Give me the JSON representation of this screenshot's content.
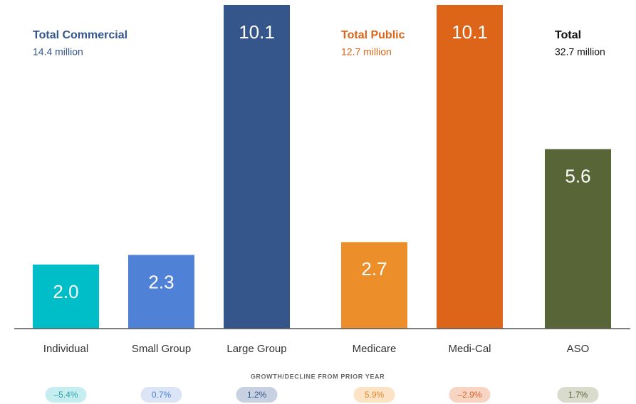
{
  "chart_data": {
    "type": "bar",
    "categories": [
      "Individual",
      "Small Group",
      "Large Group",
      "Medicare",
      "Medi-Cal",
      "ASO"
    ],
    "values": [
      2.0,
      2.3,
      10.1,
      2.7,
      10.1,
      5.6
    ],
    "value_labels": [
      "2.0",
      "2.3",
      "10.1",
      "2.7",
      "10.1",
      "5.6"
    ],
    "colors": [
      "#00bec8",
      "#4f82d6",
      "#34568b",
      "#ec8f2b",
      "#dc6519",
      "#586537"
    ],
    "annotations": [
      {
        "title": "Total Commercial",
        "text": "14.4 million",
        "color": "#34568b"
      },
      {
        "title": "Total Public",
        "text": "12.7 million",
        "color": "#dc6519"
      },
      {
        "title": "Total",
        "text": "32.7 million",
        "color": "#111111"
      }
    ],
    "growth_title": "GROWTH/DECLINE FROM PRIOR YEAR",
    "growth_labels": [
      "–5.4%",
      "0.7%",
      "1.2%",
      "5.9%",
      "–2.9%",
      "1.7%"
    ],
    "growth_colors": [
      "#c6eef0",
      "#dbe5f6",
      "#c8d1e1",
      "#fde3c5",
      "#f8d4c2",
      "#d9dccd"
    ],
    "growth_text_colors": [
      "#2aa3ab",
      "#4f82d6",
      "#34568b",
      "#e08a2a",
      "#d4622a",
      "#586537"
    ]
  }
}
